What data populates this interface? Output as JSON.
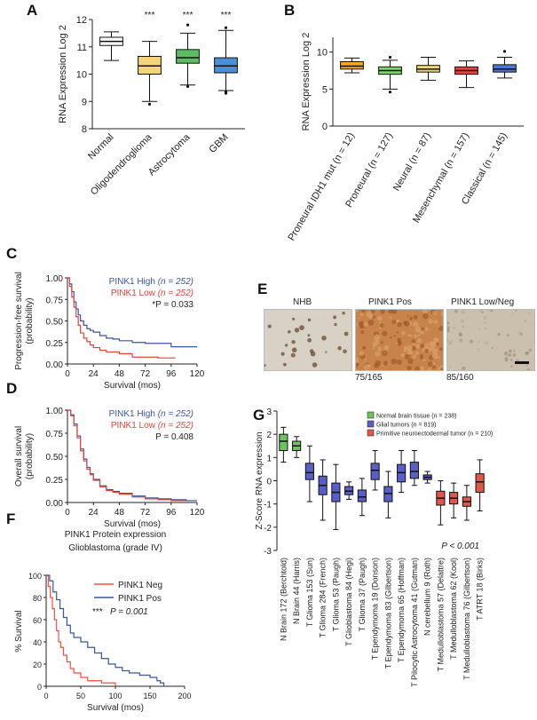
{
  "panels": {
    "A": {
      "letter": "A",
      "chart_data": {
        "type": "box",
        "categories": [
          "Normal",
          "Oligodendroglioma",
          "Astrocytoma",
          "GBM"
        ],
        "ylabel": "RNA Expression Log 2",
        "ylim": [
          8,
          12
        ],
        "yticks": [
          8,
          9,
          10,
          11,
          12
        ],
        "colors": [
          "#ffffff",
          "#f5d37a",
          "#5dbb63",
          "#4a90d9"
        ],
        "boxes": [
          {
            "min": 10.5,
            "q1": 11.05,
            "median": 11.2,
            "q3": 11.35,
            "max": 11.55,
            "outliers": []
          },
          {
            "min": 9.0,
            "q1": 10.0,
            "median": 10.3,
            "q3": 10.65,
            "max": 11.2,
            "outliers": [
              8.9
            ]
          },
          {
            "min": 9.6,
            "q1": 10.4,
            "median": 10.6,
            "q3": 10.9,
            "max": 11.5,
            "outliers": [
              11.8,
              9.55
            ]
          },
          {
            "min": 9.4,
            "q1": 10.05,
            "median": 10.3,
            "q3": 10.6,
            "max": 11.6,
            "outliers": [
              11.7,
              9.3,
              9.35
            ]
          }
        ],
        "annotations": [
          "",
          "***",
          "***",
          "***"
        ]
      }
    },
    "B": {
      "letter": "B",
      "chart_data": {
        "type": "box",
        "categories": [
          "Proneural IDH1 mut (n = 12)",
          "Proneural (n = 127)",
          "Neural (n = 87)",
          "Mesenchymal (n = 157)",
          "Classical (n = 145)"
        ],
        "ylabel": "RNA Expression Log 2",
        "ylim": [
          0,
          12
        ],
        "yticks": [
          0,
          5,
          10
        ],
        "colors": [
          "#f5a623",
          "#7ed36b",
          "#f5d37a",
          "#e0453a",
          "#4a78d4"
        ],
        "boxes": [
          {
            "min": 7.2,
            "q1": 7.7,
            "median": 8.1,
            "q3": 8.7,
            "max": 9.2,
            "outliers": []
          },
          {
            "min": 5.0,
            "q1": 7.0,
            "median": 7.5,
            "q3": 8.0,
            "max": 8.9,
            "outliers": [
              9.3,
              4.6
            ]
          },
          {
            "min": 6.2,
            "q1": 7.3,
            "median": 7.7,
            "q3": 8.2,
            "max": 9.3,
            "outliers": []
          },
          {
            "min": 5.2,
            "q1": 7.0,
            "median": 7.5,
            "q3": 8.0,
            "max": 8.8,
            "outliers": []
          },
          {
            "min": 6.5,
            "q1": 7.3,
            "median": 7.7,
            "q3": 8.3,
            "max": 9.3,
            "outliers": [
              10.1
            ]
          }
        ]
      }
    },
    "C": {
      "letter": "C",
      "chart_data": {
        "type": "line",
        "ylabel_line1": "Progression-free survival",
        "ylabel_line2": "(probability)",
        "xlabel": "Survival (mos)",
        "xlim": [
          0,
          120
        ],
        "xticks": [
          0,
          24,
          48,
          72,
          96,
          120
        ],
        "ylim": [
          0,
          1
        ],
        "yticks": [
          "0.00",
          "0.25",
          "0.50",
          "0.75",
          "1.00"
        ],
        "series": [
          {
            "name": "PINK1 High",
            "n_label": "(n = 252)",
            "color": "#3a55a0",
            "points": [
              [
                0,
                1
              ],
              [
                2,
                0.93
              ],
              [
                4,
                0.84
              ],
              [
                6,
                0.72
              ],
              [
                8,
                0.64
              ],
              [
                10,
                0.57
              ],
              [
                12,
                0.5
              ],
              [
                15,
                0.45
              ],
              [
                18,
                0.41
              ],
              [
                21,
                0.39
              ],
              [
                24,
                0.37
              ],
              [
                30,
                0.33
              ],
              [
                36,
                0.3
              ],
              [
                42,
                0.29
              ],
              [
                48,
                0.27
              ],
              [
                60,
                0.25
              ],
              [
                72,
                0.24
              ],
              [
                80,
                0.24
              ],
              [
                96,
                0.2
              ],
              [
                120,
                0.2
              ]
            ]
          },
          {
            "name": "PINK1 Low",
            "n_label": "(n = 252)",
            "color": "#e0453a",
            "points": [
              [
                0,
                1
              ],
              [
                2,
                0.9
              ],
              [
                4,
                0.78
              ],
              [
                6,
                0.66
              ],
              [
                8,
                0.55
              ],
              [
                10,
                0.45
              ],
              [
                12,
                0.36
              ],
              [
                15,
                0.3
              ],
              [
                18,
                0.26
              ],
              [
                21,
                0.22
              ],
              [
                24,
                0.19
              ],
              [
                30,
                0.16
              ],
              [
                36,
                0.14
              ],
              [
                48,
                0.12
              ],
              [
                60,
                0.08
              ],
              [
                72,
                0.08
              ],
              [
                84,
                0.07
              ],
              [
                100,
                0.07
              ]
            ]
          }
        ],
        "pvalue": "*P = 0.033"
      }
    },
    "D": {
      "letter": "D",
      "chart_data": {
        "type": "line",
        "ylabel_line1": "Overall survival",
        "ylabel_line2": "(probability)",
        "xlabel": "Survival (mos)",
        "xlim": [
          0,
          120
        ],
        "xticks": [
          0,
          24,
          48,
          72,
          96,
          120
        ],
        "ylim": [
          0,
          1
        ],
        "yticks": [
          "0.00",
          "0.25",
          "0.50",
          "0.75",
          "1.00"
        ],
        "series": [
          {
            "name": "PINK1 High",
            "n_label": "(n = 252)",
            "color": "#3a55a0",
            "points": [
              [
                0,
                1
              ],
              [
                3,
                0.95
              ],
              [
                6,
                0.85
              ],
              [
                9,
                0.72
              ],
              [
                12,
                0.58
              ],
              [
                15,
                0.47
              ],
              [
                18,
                0.38
              ],
              [
                21,
                0.31
              ],
              [
                24,
                0.25
              ],
              [
                30,
                0.18
              ],
              [
                36,
                0.14
              ],
              [
                42,
                0.12
              ],
              [
                48,
                0.1
              ],
              [
                60,
                0.07
              ],
              [
                72,
                0.05
              ],
              [
                84,
                0.04
              ],
              [
                96,
                0.03
              ],
              [
                110,
                0.02
              ],
              [
                120,
                0.02
              ]
            ]
          },
          {
            "name": "PINK1 Low",
            "n_label": "(n = 252)",
            "color": "#e0453a",
            "points": [
              [
                0,
                1
              ],
              [
                3,
                0.94
              ],
              [
                6,
                0.83
              ],
              [
                9,
                0.7
              ],
              [
                12,
                0.56
              ],
              [
                15,
                0.45
              ],
              [
                18,
                0.36
              ],
              [
                21,
                0.3
              ],
              [
                24,
                0.24
              ],
              [
                30,
                0.17
              ],
              [
                36,
                0.13
              ],
              [
                42,
                0.11
              ],
              [
                48,
                0.09
              ],
              [
                60,
                0.06
              ],
              [
                72,
                0.04
              ],
              [
                84,
                0.03
              ],
              [
                96,
                0.02
              ],
              [
                110,
                0.02
              ]
            ]
          }
        ],
        "pvalue": "P = 0.408"
      }
    },
    "E": {
      "letter": "E",
      "images": [
        {
          "title": "NHB",
          "count": "",
          "color": "#d8d2c6",
          "kind": "nhb"
        },
        {
          "title": "PINK1 Pos",
          "count": "75/165",
          "color": "#c8834a",
          "kind": "pos"
        },
        {
          "title": "PINK1 Low/Neg",
          "count": "85/160",
          "color": "#cbbfae",
          "kind": "neg"
        }
      ]
    },
    "F": {
      "letter": "F",
      "chart_data": {
        "type": "line",
        "title_line1": "PINK1 Protein expression",
        "title_line2": "Glioblastoma (grade IV)",
        "ylabel": "% Survival",
        "xlabel": "Survival (mos)",
        "xlim": [
          0,
          200
        ],
        "xticks": [
          0,
          50,
          100,
          150,
          200
        ],
        "ylim": [
          0,
          100
        ],
        "yticks": [
          0,
          20,
          40,
          60,
          80,
          100
        ],
        "series": [
          {
            "name": "PINK1 Neg",
            "color": "#ff4b3a",
            "points": [
              [
                0,
                100
              ],
              [
                3,
                90
              ],
              [
                6,
                80
              ],
              [
                9,
                70
              ],
              [
                12,
                60
              ],
              [
                15,
                50
              ],
              [
                18,
                40
              ],
              [
                21,
                35
              ],
              [
                25,
                28
              ],
              [
                30,
                22
              ],
              [
                35,
                16
              ],
              [
                40,
                12
              ],
              [
                50,
                8
              ],
              [
                60,
                5
              ],
              [
                80,
                3
              ],
              [
                100,
                1
              ],
              [
                100,
                0
              ]
            ]
          },
          {
            "name": "PINK1 Pos",
            "color": "#3a55a0",
            "points": [
              [
                0,
                100
              ],
              [
                5,
                95
              ],
              [
                10,
                85
              ],
              [
                15,
                78
              ],
              [
                20,
                70
              ],
              [
                25,
                62
              ],
              [
                30,
                55
              ],
              [
                35,
                48
              ],
              [
                40,
                44
              ],
              [
                50,
                40
              ],
              [
                60,
                35
              ],
              [
                70,
                30
              ],
              [
                80,
                25
              ],
              [
                90,
                20
              ],
              [
                100,
                17
              ],
              [
                110,
                14
              ],
              [
                120,
                12
              ],
              [
                135,
                10
              ],
              [
                150,
                8
              ],
              [
                160,
                5
              ],
              [
                165,
                3
              ],
              [
                170,
                0
              ]
            ]
          }
        ],
        "pvalue_stars": "***",
        "pvalue": "P = 0.001"
      }
    },
    "G": {
      "letter": "G",
      "chart_data": {
        "type": "box",
        "ylabel": "Z-Score RNA expression",
        "ylim": [
          -3,
          3
        ],
        "yticks": [
          -3,
          -2,
          -1,
          0,
          1,
          2,
          3
        ],
        "legend": [
          {
            "label": "Normal brain tissue (n = 238)",
            "color": "#6cc55a"
          },
          {
            "label": "Glial tumors (n = 819)",
            "color": "#5a5ec8"
          },
          {
            "label": "Primitive neuroectodermal tumor (n = 210)",
            "color": "#e0574a"
          }
        ],
        "categories": [
          "N Brain 172 (Berchtold)",
          "N Brain 44 (Harris)",
          "T Glioma 153 (Sun)",
          "T Glioma 284 (French)",
          "T Glioma 53 (Paugh)",
          "T Glioblastoma 84 (Hegi)",
          "T Glioma 37 (Paugh)",
          "T Ependymoma 19 (Donson)",
          "T Ependymoma 83 (Gilbertson)",
          "T Ependymoma 65 (Hoffman)",
          "T Pilocytic Astrocytoma 41 (Gutman)",
          "N cerebellum 9 (Roth)",
          "T Medulloblastoma 57 (Delattre)",
          "T Medulloblastoma 62 (Kool)",
          "T Medulloblastoma 76 (Gilbertson)",
          "T ATRT 18 (Birks)"
        ],
        "groups": [
          0,
          0,
          1,
          1,
          1,
          1,
          1,
          1,
          1,
          1,
          1,
          1,
          2,
          2,
          2,
          2
        ],
        "boxes": [
          {
            "min": 0.8,
            "q1": 1.3,
            "median": 1.7,
            "q3": 2.0,
            "max": 2.3
          },
          {
            "min": 1.0,
            "q1": 1.3,
            "median": 1.5,
            "q3": 1.7,
            "max": 1.9
          },
          {
            "min": -0.9,
            "q1": 0.05,
            "median": 0.35,
            "q3": 0.75,
            "max": 1.5
          },
          {
            "min": -1.7,
            "q1": -0.6,
            "median": -0.2,
            "q3": 0.2,
            "max": 0.9
          },
          {
            "min": -2.1,
            "q1": -0.9,
            "median": -0.5,
            "q3": -0.1,
            "max": 0.7
          },
          {
            "min": -0.8,
            "q1": -0.6,
            "median": -0.45,
            "q3": -0.25,
            "max": -0.05
          },
          {
            "min": -1.5,
            "q1": -0.9,
            "median": -0.7,
            "q3": -0.4,
            "max": 0.1
          },
          {
            "min": -0.4,
            "q1": 0.05,
            "median": 0.45,
            "q3": 0.75,
            "max": 1.3
          },
          {
            "min": -1.6,
            "q1": -0.9,
            "median": -0.55,
            "q3": -0.25,
            "max": 0.4
          },
          {
            "min": -0.5,
            "q1": -0.05,
            "median": 0.35,
            "q3": 0.7,
            "max": 1.3
          },
          {
            "min": -0.2,
            "q1": 0.1,
            "median": 0.4,
            "q3": 0.8,
            "max": 1.3
          },
          {
            "min": -0.1,
            "q1": 0.05,
            "median": 0.15,
            "q3": 0.25,
            "max": 0.4
          },
          {
            "min": -1.9,
            "q1": -1.05,
            "median": -0.75,
            "q3": -0.45,
            "max": 0.0
          },
          {
            "min": -1.6,
            "q1": -1.0,
            "median": -0.75,
            "q3": -0.5,
            "max": -0.1
          },
          {
            "min": -1.7,
            "q1": -1.1,
            "median": -0.9,
            "q3": -0.7,
            "max": -0.2
          },
          {
            "min": -1.3,
            "q1": -0.5,
            "median": -0.05,
            "q3": 0.3,
            "max": 0.9
          }
        ],
        "pvalue": "P < 0.001"
      }
    }
  }
}
